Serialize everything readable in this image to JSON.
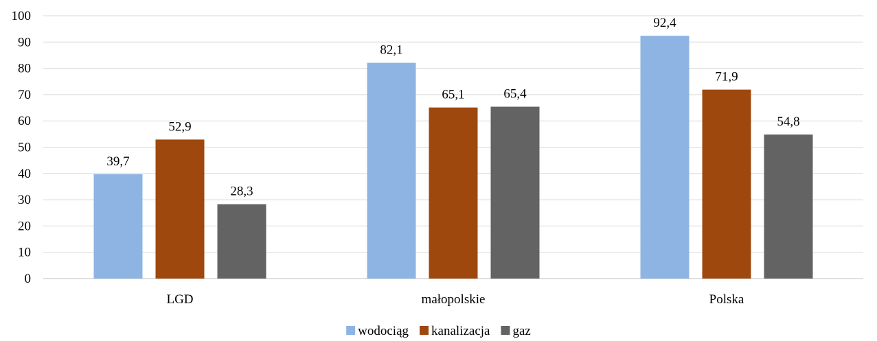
{
  "chart_data": {
    "type": "bar",
    "title": "",
    "xlabel": "",
    "ylabel": "",
    "ylim": [
      0,
      100
    ],
    "yticks": [
      0,
      10,
      20,
      30,
      40,
      50,
      60,
      70,
      80,
      90,
      100
    ],
    "grid": true,
    "legend_position": "bottom",
    "categories": [
      "LGD",
      "małopolskie",
      "Polska"
    ],
    "series": [
      {
        "name": "wodociąg",
        "color": "#8eb4e3",
        "values": [
          39.7,
          82.1,
          92.4
        ],
        "labels": [
          "39,7",
          "82,1",
          "92,4"
        ]
      },
      {
        "name": "kanalizacja",
        "color": "#9e480e",
        "values": [
          52.9,
          65.1,
          71.9
        ],
        "labels": [
          "52,9",
          "65,1",
          "71,9"
        ]
      },
      {
        "name": "gaz",
        "color": "#636363",
        "values": [
          28.3,
          65.4,
          54.8
        ],
        "labels": [
          "28,3",
          "65,4",
          "54,8"
        ]
      }
    ]
  }
}
